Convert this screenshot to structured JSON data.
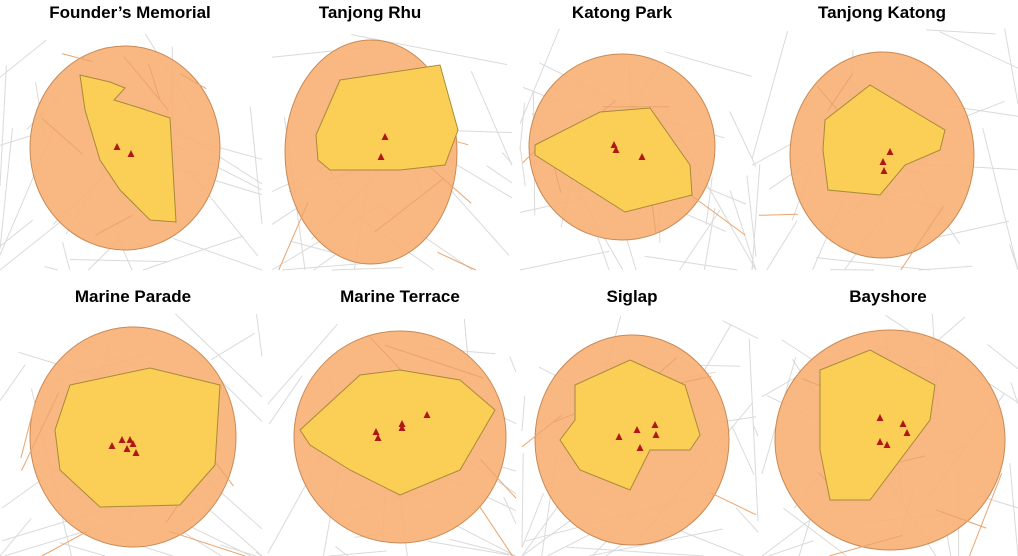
{
  "colors": {
    "buffer": "#F9B176",
    "area": "#FBCF55",
    "marker": "#B01818",
    "roads": "#DADADA"
  },
  "panels": [
    {
      "title": "Founder’s Memorial"
    },
    {
      "title": "Tanjong Rhu"
    },
    {
      "title": "Katong Park"
    },
    {
      "title": "Tanjong Katong"
    },
    {
      "title": "Marine Parade"
    },
    {
      "title": "Marine Terrace"
    },
    {
      "title": "Siglap"
    },
    {
      "title": "Bayshore"
    }
  ],
  "marker_icon": "triangle"
}
